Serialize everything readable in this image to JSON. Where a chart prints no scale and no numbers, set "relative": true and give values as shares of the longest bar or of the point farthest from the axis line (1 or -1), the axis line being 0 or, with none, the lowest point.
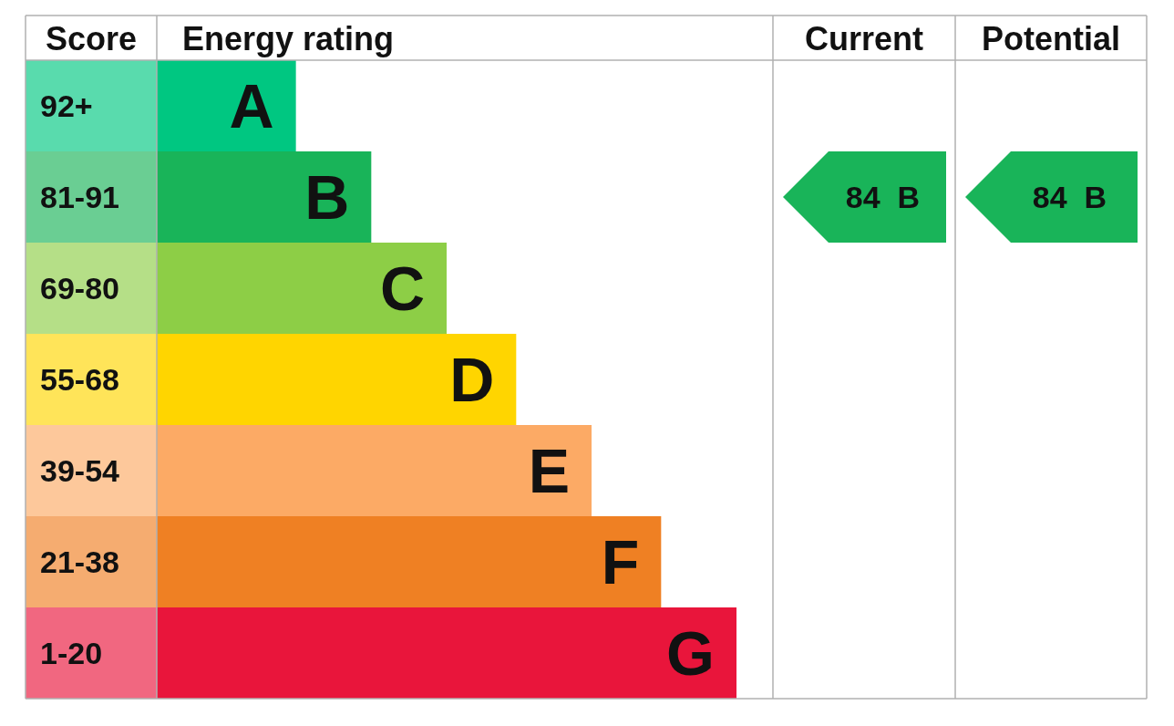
{
  "chart_data": {
    "type": "bar",
    "orientation": "horizontal",
    "relative": true,
    "categories": [
      "A",
      "B",
      "C",
      "D",
      "E",
      "F",
      "G"
    ],
    "values": [
      0.24,
      0.37,
      0.5,
      0.62,
      0.75,
      0.87,
      1
    ],
    "colors": [
      "#00c781",
      "#19b459",
      "#8dce46",
      "#ffd500",
      "#fcaa65",
      "#ef8023",
      "#e9153b"
    ],
    "annotations": [
      "Score",
      "Energy rating",
      "Current",
      "Potential",
      "92+",
      "81-91",
      "69-80",
      "55-68",
      "39-54",
      "21-38",
      "1-20",
      "84  B",
      "84  B"
    ]
  }
}
